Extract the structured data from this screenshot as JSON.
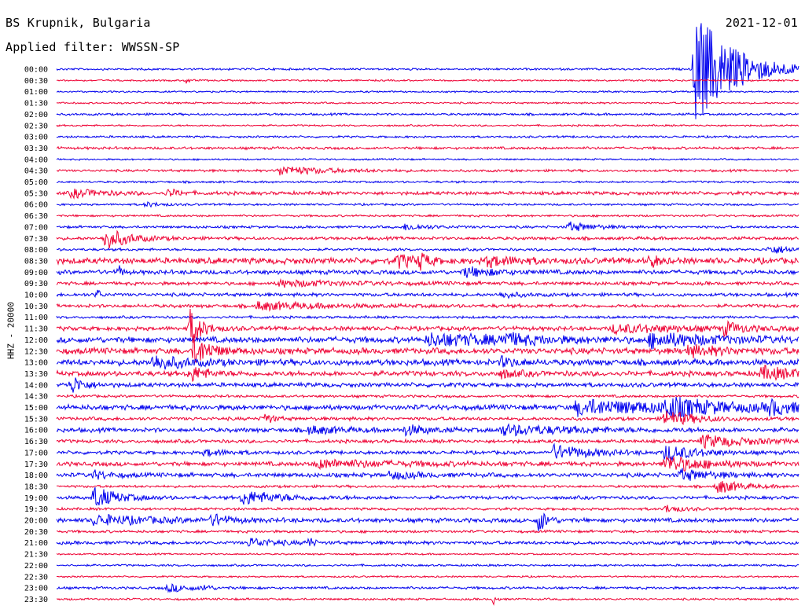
{
  "header": {
    "station": "BS Krupnik, Bulgaria",
    "filter": "Applied filter: WWSSN-SP",
    "date": "2021-12-01"
  },
  "chart_data": {
    "type": "line",
    "title": "BS Krupnik, Bulgaria",
    "subtitle": "Applied filter: WWSSN-SP",
    "ylabel": "HHZ - 20000",
    "row_labels": [
      "00:00",
      "00:30",
      "01:00",
      "01:30",
      "02:00",
      "02:30",
      "03:00",
      "03:30",
      "04:00",
      "04:30",
      "05:00",
      "05:30",
      "06:00",
      "06:30",
      "07:00",
      "07:30",
      "08:00",
      "08:30",
      "09:00",
      "09:30",
      "10:00",
      "10:30",
      "11:00",
      "11:30",
      "12:00",
      "12:30",
      "13:00",
      "13:30",
      "14:00",
      "14:30",
      "15:00",
      "15:30",
      "16:00",
      "16:30",
      "17:00",
      "17:30",
      "18:00",
      "18:30",
      "19:00",
      "19:30",
      "20:00",
      "20:30",
      "21:00",
      "21:30",
      "22:00",
      "22:30",
      "23:00",
      "23:30"
    ],
    "row_colors": [
      "#0000ee",
      "#ee0033"
    ],
    "noise_levels": [
      1.2,
      1.0,
      1.0,
      1.0,
      1.3,
      1.0,
      1.2,
      1.5,
      1.0,
      1.4,
      1.2,
      2.0,
      1.2,
      1.2,
      1.5,
      1.8,
      1.5,
      3.5,
      2.5,
      2.0,
      2.0,
      2.0,
      1.5,
      2.5,
      3.5,
      3.5,
      3.5,
      3.0,
      2.5,
      1.5,
      3.0,
      2.0,
      2.5,
      2.0,
      2.0,
      2.5,
      2.5,
      1.5,
      2.0,
      1.5,
      2.5,
      1.5,
      2.0,
      1.0,
      1.2,
      1.0,
      1.5,
      1.2
    ],
    "events": [
      {
        "row": 0,
        "x": 0.86,
        "amp": 75,
        "dur": 0.05
      },
      {
        "row": 1,
        "x": 0.175,
        "amp": 4,
        "dur": 0.004
      },
      {
        "row": 9,
        "x": 0.3,
        "amp": 6,
        "dur": 0.06
      },
      {
        "row": 11,
        "x": 0.02,
        "amp": 5,
        "dur": 0.04
      },
      {
        "row": 11,
        "x": 0.15,
        "amp": 5,
        "dur": 0.015
      },
      {
        "row": 12,
        "x": 0.12,
        "amp": 3,
        "dur": 0.02
      },
      {
        "row": 14,
        "x": 0.47,
        "amp": 4,
        "dur": 0.03
      },
      {
        "row": 14,
        "x": 0.69,
        "amp": 6,
        "dur": 0.03
      },
      {
        "row": 15,
        "x": 0.065,
        "amp": 14,
        "dur": 0.03
      },
      {
        "row": 16,
        "x": 0.96,
        "amp": 5,
        "dur": 0.04
      },
      {
        "row": 17,
        "x": 0.46,
        "amp": 8,
        "dur": 0.02
      },
      {
        "row": 17,
        "x": 0.49,
        "amp": 10,
        "dur": 0.01
      },
      {
        "row": 17,
        "x": 0.58,
        "amp": 6,
        "dur": 0.04
      },
      {
        "row": 17,
        "x": 0.8,
        "amp": 9,
        "dur": 0.01
      },
      {
        "row": 18,
        "x": 0.55,
        "amp": 6,
        "dur": 0.04
      },
      {
        "row": 18,
        "x": 0.085,
        "amp": 8,
        "dur": 0.004
      },
      {
        "row": 19,
        "x": 0.3,
        "amp": 4,
        "dur": 0.08
      },
      {
        "row": 20,
        "x": 0.055,
        "amp": 8,
        "dur": 0.004
      },
      {
        "row": 20,
        "x": 0.6,
        "amp": 4,
        "dur": 0.02
      },
      {
        "row": 21,
        "x": 0.27,
        "amp": 5,
        "dur": 0.08
      },
      {
        "row": 23,
        "x": 0.18,
        "amp": 25,
        "dur": 0.015
      },
      {
        "row": 23,
        "x": 0.75,
        "amp": 5,
        "dur": 0.1
      },
      {
        "row": 23,
        "x": 0.9,
        "amp": 8,
        "dur": 0.02
      },
      {
        "row": 24,
        "x": 0.5,
        "amp": 7,
        "dur": 0.12
      },
      {
        "row": 24,
        "x": 0.6,
        "amp": 6,
        "dur": 0.03
      },
      {
        "row": 24,
        "x": 0.8,
        "amp": 8,
        "dur": 0.08
      },
      {
        "row": 25,
        "x": 0.185,
        "amp": 20,
        "dur": 0.02
      },
      {
        "row": 25,
        "x": 0.85,
        "amp": 6,
        "dur": 0.05
      },
      {
        "row": 26,
        "x": 0.13,
        "amp": 9,
        "dur": 0.04
      },
      {
        "row": 26,
        "x": 0.6,
        "amp": 6,
        "dur": 0.02
      },
      {
        "row": 27,
        "x": 0.18,
        "amp": 10,
        "dur": 0.02
      },
      {
        "row": 27,
        "x": 0.6,
        "amp": 5,
        "dur": 0.02
      },
      {
        "row": 27,
        "x": 0.95,
        "amp": 8,
        "dur": 0.05
      },
      {
        "row": 28,
        "x": 0.02,
        "amp": 12,
        "dur": 0.015
      },
      {
        "row": 30,
        "x": 0.7,
        "amp": 9,
        "dur": 0.15
      },
      {
        "row": 30,
        "x": 0.82,
        "amp": 10,
        "dur": 0.06
      },
      {
        "row": 30,
        "x": 0.96,
        "amp": 8,
        "dur": 0.03
      },
      {
        "row": 31,
        "x": 0.28,
        "amp": 8,
        "dur": 0.01
      },
      {
        "row": 31,
        "x": 0.82,
        "amp": 10,
        "dur": 0.04
      },
      {
        "row": 32,
        "x": 0.34,
        "amp": 5,
        "dur": 0.04
      },
      {
        "row": 32,
        "x": 0.47,
        "amp": 6,
        "dur": 0.03
      },
      {
        "row": 32,
        "x": 0.6,
        "amp": 6,
        "dur": 0.1
      },
      {
        "row": 33,
        "x": 0.87,
        "amp": 8,
        "dur": 0.06
      },
      {
        "row": 34,
        "x": 0.2,
        "amp": 4,
        "dur": 0.03
      },
      {
        "row": 34,
        "x": 0.67,
        "amp": 9,
        "dur": 0.05
      },
      {
        "row": 34,
        "x": 0.82,
        "amp": 10,
        "dur": 0.04
      },
      {
        "row": 35,
        "x": 0.35,
        "amp": 5,
        "dur": 0.1
      },
      {
        "row": 35,
        "x": 0.82,
        "amp": 11,
        "dur": 0.05
      },
      {
        "row": 36,
        "x": 0.05,
        "amp": 5,
        "dur": 0.02
      },
      {
        "row": 36,
        "x": 0.45,
        "amp": 5,
        "dur": 0.03
      },
      {
        "row": 36,
        "x": 0.84,
        "amp": 7,
        "dur": 0.04
      },
      {
        "row": 37,
        "x": 0.89,
        "amp": 9,
        "dur": 0.03
      },
      {
        "row": 38,
        "x": 0.05,
        "amp": 14,
        "dur": 0.03
      },
      {
        "row": 38,
        "x": 0.25,
        "amp": 9,
        "dur": 0.05
      },
      {
        "row": 39,
        "x": 0.82,
        "amp": 5,
        "dur": 0.02
      },
      {
        "row": 40,
        "x": 0.05,
        "amp": 6,
        "dur": 0.08
      },
      {
        "row": 40,
        "x": 0.21,
        "amp": 7,
        "dur": 0.02
      },
      {
        "row": 40,
        "x": 0.65,
        "amp": 16,
        "dur": 0.01
      },
      {
        "row": 42,
        "x": 0.26,
        "amp": 6,
        "dur": 0.03
      },
      {
        "row": 42,
        "x": 0.34,
        "amp": 8,
        "dur": 0.005
      },
      {
        "row": 46,
        "x": 0.15,
        "amp": 5,
        "dur": 0.03
      },
      {
        "row": 46,
        "x": 0.2,
        "amp": 5,
        "dur": 0.005
      },
      {
        "row": 47,
        "x": 0.59,
        "amp": 8,
        "dur": 0.003
      }
    ]
  }
}
